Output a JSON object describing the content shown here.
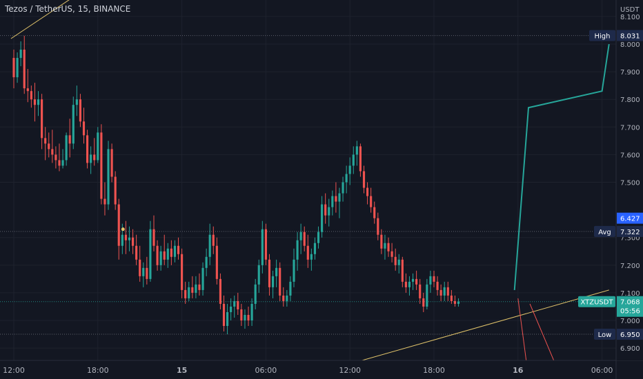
{
  "chart_data": {
    "type": "candlestick",
    "title": "Tezos / TetherUS, 15, BINANCE",
    "currency": "USDT",
    "ylim": [
      6.85,
      8.14
    ],
    "y_ticks": [
      "8.100",
      "8.000",
      "7.900",
      "7.800",
      "7.700",
      "7.600",
      "7.500",
      "7.300",
      "7.200",
      "7.100",
      "7.000",
      "6.900"
    ],
    "y_tick_values": [
      8.1,
      8.0,
      7.9,
      7.8,
      7.7,
      7.6,
      7.5,
      7.3,
      7.2,
      7.1,
      7.0,
      6.9
    ],
    "x_ticks": [
      "12:00",
      "18:00",
      "15",
      "06:00",
      "12:00",
      "18:00",
      "16",
      "06:00"
    ],
    "x_tick_hours": [
      0,
      6,
      12,
      18,
      24,
      30,
      36,
      42
    ],
    "bold_x_ticks": [
      "15",
      "16"
    ],
    "candle_step_hours": 0.25,
    "candles": [
      {
        "o": 7.95,
        "h": 7.98,
        "l": 7.84,
        "c": 7.88
      },
      {
        "o": 7.88,
        "h": 7.97,
        "l": 7.86,
        "c": 7.95
      },
      {
        "o": 7.95,
        "h": 8.01,
        "l": 7.92,
        "c": 7.98
      },
      {
        "o": 7.98,
        "h": 8.03,
        "l": 7.82,
        "c": 7.84
      },
      {
        "o": 7.84,
        "h": 7.91,
        "l": 7.79,
        "c": 7.83
      },
      {
        "o": 7.83,
        "h": 7.85,
        "l": 7.77,
        "c": 7.8
      },
      {
        "o": 7.8,
        "h": 7.86,
        "l": 7.72,
        "c": 7.78
      },
      {
        "o": 7.78,
        "h": 7.83,
        "l": 7.74,
        "c": 7.8
      },
      {
        "o": 7.8,
        "h": 7.82,
        "l": 7.62,
        "c": 7.66
      },
      {
        "o": 7.66,
        "h": 7.7,
        "l": 7.58,
        "c": 7.64
      },
      {
        "o": 7.64,
        "h": 7.68,
        "l": 7.59,
        "c": 7.62
      },
      {
        "o": 7.62,
        "h": 7.69,
        "l": 7.57,
        "c": 7.6
      },
      {
        "o": 7.6,
        "h": 7.63,
        "l": 7.55,
        "c": 7.58
      },
      {
        "o": 7.58,
        "h": 7.64,
        "l": 7.54,
        "c": 7.56
      },
      {
        "o": 7.56,
        "h": 7.62,
        "l": 7.55,
        "c": 7.58
      },
      {
        "o": 7.58,
        "h": 7.68,
        "l": 7.56,
        "c": 7.67
      },
      {
        "o": 7.67,
        "h": 7.73,
        "l": 7.59,
        "c": 7.64
      },
      {
        "o": 7.64,
        "h": 7.81,
        "l": 7.62,
        "c": 7.78
      },
      {
        "o": 7.78,
        "h": 7.85,
        "l": 7.74,
        "c": 7.8
      },
      {
        "o": 7.8,
        "h": 7.82,
        "l": 7.7,
        "c": 7.72
      },
      {
        "o": 7.72,
        "h": 7.77,
        "l": 7.64,
        "c": 7.67
      },
      {
        "o": 7.67,
        "h": 7.69,
        "l": 7.55,
        "c": 7.57
      },
      {
        "o": 7.57,
        "h": 7.63,
        "l": 7.53,
        "c": 7.6
      },
      {
        "o": 7.6,
        "h": 7.66,
        "l": 7.56,
        "c": 7.58
      },
      {
        "o": 7.58,
        "h": 7.7,
        "l": 7.57,
        "c": 7.68
      },
      {
        "o": 7.68,
        "h": 7.71,
        "l": 7.42,
        "c": 7.44
      },
      {
        "o": 7.44,
        "h": 7.5,
        "l": 7.38,
        "c": 7.42
      },
      {
        "o": 7.42,
        "h": 7.65,
        "l": 7.4,
        "c": 7.62
      },
      {
        "o": 7.62,
        "h": 7.64,
        "l": 7.5,
        "c": 7.52
      },
      {
        "o": 7.52,
        "h": 7.54,
        "l": 7.4,
        "c": 7.42
      },
      {
        "o": 7.42,
        "h": 7.44,
        "l": 7.22,
        "c": 7.27
      },
      {
        "o": 7.27,
        "h": 7.35,
        "l": 7.24,
        "c": 7.31
      },
      {
        "o": 7.31,
        "h": 7.36,
        "l": 7.24,
        "c": 7.29
      },
      {
        "o": 7.29,
        "h": 7.34,
        "l": 7.25,
        "c": 7.3
      },
      {
        "o": 7.3,
        "h": 7.33,
        "l": 7.24,
        "c": 7.27
      },
      {
        "o": 7.27,
        "h": 7.31,
        "l": 7.2,
        "c": 7.22
      },
      {
        "o": 7.22,
        "h": 7.27,
        "l": 7.14,
        "c": 7.16
      },
      {
        "o": 7.16,
        "h": 7.21,
        "l": 7.12,
        "c": 7.19
      },
      {
        "o": 7.19,
        "h": 7.23,
        "l": 7.13,
        "c": 7.15
      },
      {
        "o": 7.15,
        "h": 7.36,
        "l": 7.14,
        "c": 7.33
      },
      {
        "o": 7.33,
        "h": 7.38,
        "l": 7.25,
        "c": 7.27
      },
      {
        "o": 7.27,
        "h": 7.29,
        "l": 7.18,
        "c": 7.2
      },
      {
        "o": 7.2,
        "h": 7.27,
        "l": 7.18,
        "c": 7.25
      },
      {
        "o": 7.25,
        "h": 7.31,
        "l": 7.2,
        "c": 7.22
      },
      {
        "o": 7.22,
        "h": 7.28,
        "l": 7.19,
        "c": 7.26
      },
      {
        "o": 7.26,
        "h": 7.29,
        "l": 7.2,
        "c": 7.23
      },
      {
        "o": 7.23,
        "h": 7.29,
        "l": 7.21,
        "c": 7.27
      },
      {
        "o": 7.27,
        "h": 7.3,
        "l": 7.22,
        "c": 7.24
      },
      {
        "o": 7.24,
        "h": 7.26,
        "l": 7.08,
        "c": 7.11
      },
      {
        "o": 7.11,
        "h": 7.14,
        "l": 7.06,
        "c": 7.08
      },
      {
        "o": 7.08,
        "h": 7.14,
        "l": 7.07,
        "c": 7.12
      },
      {
        "o": 7.12,
        "h": 7.16,
        "l": 7.08,
        "c": 7.1
      },
      {
        "o": 7.1,
        "h": 7.16,
        "l": 7.08,
        "c": 7.13
      },
      {
        "o": 7.13,
        "h": 7.17,
        "l": 7.09,
        "c": 7.11
      },
      {
        "o": 7.11,
        "h": 7.21,
        "l": 7.09,
        "c": 7.19
      },
      {
        "o": 7.19,
        "h": 7.26,
        "l": 7.16,
        "c": 7.23
      },
      {
        "o": 7.23,
        "h": 7.35,
        "l": 7.2,
        "c": 7.31
      },
      {
        "o": 7.31,
        "h": 7.34,
        "l": 7.24,
        "c": 7.27
      },
      {
        "o": 7.27,
        "h": 7.3,
        "l": 7.13,
        "c": 7.15
      },
      {
        "o": 7.15,
        "h": 7.17,
        "l": 7.04,
        "c": 7.06
      },
      {
        "o": 7.06,
        "h": 7.09,
        "l": 6.96,
        "c": 6.98
      },
      {
        "o": 6.98,
        "h": 7.06,
        "l": 6.95,
        "c": 7.03
      },
      {
        "o": 7.03,
        "h": 7.08,
        "l": 7.0,
        "c": 7.05
      },
      {
        "o": 7.05,
        "h": 7.09,
        "l": 7.01,
        "c": 7.07
      },
      {
        "o": 7.07,
        "h": 7.1,
        "l": 7.02,
        "c": 7.04
      },
      {
        "o": 7.04,
        "h": 7.06,
        "l": 6.98,
        "c": 7.0
      },
      {
        "o": 7.0,
        "h": 7.04,
        "l": 6.97,
        "c": 7.02
      },
      {
        "o": 7.02,
        "h": 7.05,
        "l": 6.98,
        "c": 7.0
      },
      {
        "o": 7.0,
        "h": 7.08,
        "l": 6.98,
        "c": 7.06
      },
      {
        "o": 7.06,
        "h": 7.15,
        "l": 7.04,
        "c": 7.13
      },
      {
        "o": 7.13,
        "h": 7.22,
        "l": 7.1,
        "c": 7.2
      },
      {
        "o": 7.2,
        "h": 7.36,
        "l": 7.17,
        "c": 7.33
      },
      {
        "o": 7.33,
        "h": 7.35,
        "l": 7.2,
        "c": 7.22
      },
      {
        "o": 7.22,
        "h": 7.24,
        "l": 7.09,
        "c": 7.12
      },
      {
        "o": 7.12,
        "h": 7.18,
        "l": 7.08,
        "c": 7.16
      },
      {
        "o": 7.16,
        "h": 7.22,
        "l": 7.12,
        "c": 7.19
      },
      {
        "o": 7.19,
        "h": 7.21,
        "l": 7.07,
        "c": 7.09
      },
      {
        "o": 7.09,
        "h": 7.12,
        "l": 7.05,
        "c": 7.07
      },
      {
        "o": 7.07,
        "h": 7.11,
        "l": 7.05,
        "c": 7.09
      },
      {
        "o": 7.09,
        "h": 7.16,
        "l": 7.07,
        "c": 7.14
      },
      {
        "o": 7.14,
        "h": 7.26,
        "l": 7.12,
        "c": 7.22
      },
      {
        "o": 7.22,
        "h": 7.32,
        "l": 7.18,
        "c": 7.29
      },
      {
        "o": 7.29,
        "h": 7.35,
        "l": 7.24,
        "c": 7.32
      },
      {
        "o": 7.32,
        "h": 7.34,
        "l": 7.25,
        "c": 7.27
      },
      {
        "o": 7.27,
        "h": 7.31,
        "l": 7.19,
        "c": 7.22
      },
      {
        "o": 7.22,
        "h": 7.26,
        "l": 7.18,
        "c": 7.24
      },
      {
        "o": 7.24,
        "h": 7.3,
        "l": 7.22,
        "c": 7.28
      },
      {
        "o": 7.28,
        "h": 7.34,
        "l": 7.26,
        "c": 7.32
      },
      {
        "o": 7.32,
        "h": 7.45,
        "l": 7.3,
        "c": 7.42
      },
      {
        "o": 7.42,
        "h": 7.46,
        "l": 7.35,
        "c": 7.38
      },
      {
        "o": 7.38,
        "h": 7.44,
        "l": 7.34,
        "c": 7.41
      },
      {
        "o": 7.41,
        "h": 7.47,
        "l": 7.38,
        "c": 7.45
      },
      {
        "o": 7.45,
        "h": 7.5,
        "l": 7.39,
        "c": 7.43
      },
      {
        "o": 7.43,
        "h": 7.48,
        "l": 7.37,
        "c": 7.46
      },
      {
        "o": 7.46,
        "h": 7.52,
        "l": 7.43,
        "c": 7.5
      },
      {
        "o": 7.5,
        "h": 7.56,
        "l": 7.46,
        "c": 7.53
      },
      {
        "o": 7.53,
        "h": 7.59,
        "l": 7.49,
        "c": 7.56
      },
      {
        "o": 7.56,
        "h": 7.63,
        "l": 7.53,
        "c": 7.6
      },
      {
        "o": 7.6,
        "h": 7.65,
        "l": 7.56,
        "c": 7.63
      },
      {
        "o": 7.63,
        "h": 7.64,
        "l": 7.52,
        "c": 7.54
      },
      {
        "o": 7.54,
        "h": 7.56,
        "l": 7.46,
        "c": 7.48
      },
      {
        "o": 7.48,
        "h": 7.5,
        "l": 7.42,
        "c": 7.45
      },
      {
        "o": 7.45,
        "h": 7.48,
        "l": 7.39,
        "c": 7.41
      },
      {
        "o": 7.41,
        "h": 7.43,
        "l": 7.35,
        "c": 7.37
      },
      {
        "o": 7.37,
        "h": 7.39,
        "l": 7.29,
        "c": 7.31
      },
      {
        "o": 7.31,
        "h": 7.33,
        "l": 7.24,
        "c": 7.26
      },
      {
        "o": 7.26,
        "h": 7.31,
        "l": 7.22,
        "c": 7.28
      },
      {
        "o": 7.28,
        "h": 7.3,
        "l": 7.23,
        "c": 7.25
      },
      {
        "o": 7.25,
        "h": 7.28,
        "l": 7.21,
        "c": 7.23
      },
      {
        "o": 7.23,
        "h": 7.26,
        "l": 7.18,
        "c": 7.2
      },
      {
        "o": 7.2,
        "h": 7.24,
        "l": 7.17,
        "c": 7.22
      },
      {
        "o": 7.22,
        "h": 7.23,
        "l": 7.12,
        "c": 7.14
      },
      {
        "o": 7.14,
        "h": 7.17,
        "l": 7.1,
        "c": 7.12
      },
      {
        "o": 7.12,
        "h": 7.16,
        "l": 7.09,
        "c": 7.14
      },
      {
        "o": 7.14,
        "h": 7.17,
        "l": 7.11,
        "c": 7.15
      },
      {
        "o": 7.15,
        "h": 7.18,
        "l": 7.11,
        "c": 7.13
      },
      {
        "o": 7.13,
        "h": 7.15,
        "l": 7.06,
        "c": 7.08
      },
      {
        "o": 7.08,
        "h": 7.1,
        "l": 7.03,
        "c": 7.05
      },
      {
        "o": 7.05,
        "h": 7.15,
        "l": 7.04,
        "c": 7.13
      },
      {
        "o": 7.13,
        "h": 7.18,
        "l": 7.1,
        "c": 7.16
      },
      {
        "o": 7.16,
        "h": 7.18,
        "l": 7.12,
        "c": 7.14
      },
      {
        "o": 7.14,
        "h": 7.16,
        "l": 7.09,
        "c": 7.11
      },
      {
        "o": 7.11,
        "h": 7.13,
        "l": 7.07,
        "c": 7.09
      },
      {
        "o": 7.09,
        "h": 7.14,
        "l": 7.07,
        "c": 7.12
      },
      {
        "o": 7.12,
        "h": 7.14,
        "l": 7.07,
        "c": 7.09
      },
      {
        "o": 7.09,
        "h": 7.11,
        "l": 7.06,
        "c": 7.07
      },
      {
        "o": 7.07,
        "h": 7.09,
        "l": 7.05,
        "c": 7.06
      },
      {
        "o": 7.06,
        "h": 7.08,
        "l": 7.05,
        "c": 7.068
      }
    ],
    "drawings": {
      "upper_trendline": {
        "color": "#e0c36a",
        "points": [
          [
            -0.2,
            8.02
          ],
          [
            7.5,
            8.28
          ]
        ]
      },
      "lower_trendline": {
        "color": "#e0c36a",
        "points": [
          [
            24.5,
            6.85
          ],
          [
            42.5,
            7.11
          ]
        ]
      },
      "bullish_path": {
        "color": "#26a69a",
        "points": [
          [
            35.75,
            7.11
          ],
          [
            36.75,
            7.77
          ],
          [
            42.0,
            7.83
          ],
          [
            42.5,
            8.0
          ]
        ]
      },
      "bearish_lines": {
        "color": "#ef5350",
        "lines": [
          [
            [
              36.0,
              7.08
            ],
            [
              36.6,
              6.85
            ]
          ],
          [
            [
              36.85,
              7.06
            ],
            [
              38.6,
              6.85
            ]
          ]
        ]
      },
      "marker": {
        "color": "#e0c36a",
        "x": 7.8,
        "y": 7.33
      }
    },
    "price_lines": [
      {
        "label": "High",
        "value": "8.031",
        "y": 8.031,
        "badge_color": "#1e2a4a"
      },
      {
        "label": "Avg",
        "value": "7.322",
        "y": 7.322,
        "badge_color": "#1e2a4a"
      },
      {
        "label": "Low",
        "value": "6.950",
        "y": 6.95,
        "badge_color": "#1e2a4a"
      }
    ],
    "level_badge": {
      "value": "6.427",
      "y": 7.37,
      "color": "#2962ff"
    },
    "last_price": {
      "symbol": "XTZUSDT",
      "value": "7.068",
      "countdown": "05:56",
      "y": 7.068,
      "color": "#26a69a"
    },
    "colors": {
      "up": "#26a69a",
      "down": "#ef5350",
      "grid": "#1e222d",
      "axis_text": "#b2b5be",
      "background": "#131722"
    }
  }
}
